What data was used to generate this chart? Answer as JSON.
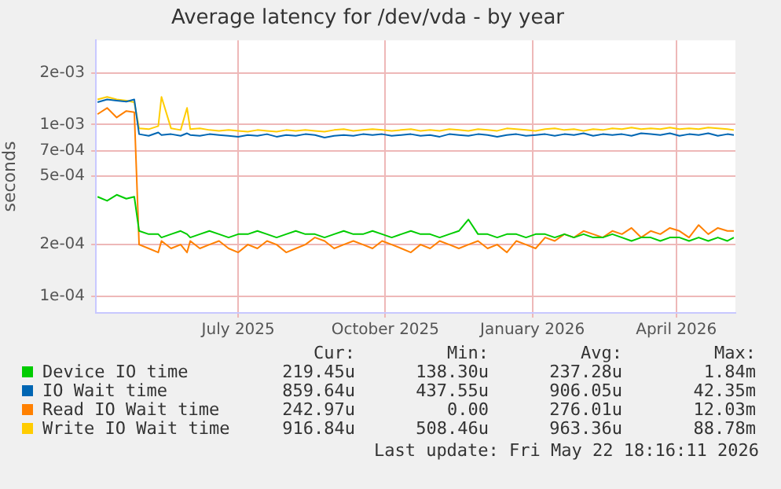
{
  "chart_data": {
    "type": "line",
    "title": "Average latency for /dev/vda - by year",
    "ylabel": "seconds",
    "log": "y",
    "grid": true,
    "legend": "bottom",
    "marker": "none",
    "xlim": [
      "2025-04-17",
      "2026-05-22"
    ],
    "xticks": [
      {
        "value": "2025-07-15",
        "label": "July 2025"
      },
      {
        "value": "2025-10-15",
        "label": "October 2025"
      },
      {
        "value": "2026-01-15",
        "label": "January 2026"
      },
      {
        "value": "2026-04-15",
        "label": "April 2026"
      }
    ],
    "ylim": [
      8e-05,
      0.0031
    ],
    "yticks": [
      {
        "value": 0.0001,
        "label": "1e-04"
      },
      {
        "value": 0.0002,
        "label": "2e-04"
      },
      {
        "value": 0.0005,
        "label": "5e-04"
      },
      {
        "value": 0.0007,
        "label": "7e-04"
      },
      {
        "value": 0.001,
        "label": "1e-03"
      },
      {
        "value": 0.002,
        "label": "2e-03"
      }
    ],
    "x": [
      "2025-04-18",
      "2025-04-24",
      "2025-04-30",
      "2025-05-06",
      "2025-05-11",
      "2025-05-14",
      "2025-05-20",
      "2025-05-26",
      "2025-05-28",
      "2025-06-03",
      "2025-06-09",
      "2025-06-13",
      "2025-06-15",
      "2025-06-21",
      "2025-06-27",
      "2025-07-03",
      "2025-07-09",
      "2025-07-15",
      "2025-07-21",
      "2025-07-27",
      "2025-08-02",
      "2025-08-08",
      "2025-08-14",
      "2025-08-20",
      "2025-08-26",
      "2025-09-01",
      "2025-09-07",
      "2025-09-13",
      "2025-09-19",
      "2025-09-25",
      "2025-10-01",
      "2025-10-07",
      "2025-10-13",
      "2025-10-19",
      "2025-10-25",
      "2025-10-31",
      "2025-11-06",
      "2025-11-12",
      "2025-11-18",
      "2025-11-24",
      "2025-11-30",
      "2025-12-06",
      "2025-12-12",
      "2025-12-18",
      "2025-12-24",
      "2025-12-30",
      "2026-01-05",
      "2026-01-11",
      "2026-01-17",
      "2026-01-23",
      "2026-01-29",
      "2026-02-04",
      "2026-02-10",
      "2026-02-16",
      "2026-02-22",
      "2026-02-28",
      "2026-03-06",
      "2026-03-12",
      "2026-03-18",
      "2026-03-24",
      "2026-03-30",
      "2026-04-05",
      "2026-04-11",
      "2026-04-17",
      "2026-04-23",
      "2026-04-29",
      "2026-05-05",
      "2026-05-11",
      "2026-05-17",
      "2026-05-21"
    ],
    "series": [
      {
        "name": "Device IO time",
        "color": "#00cc00",
        "values": [
          0.00038,
          0.00036,
          0.00039,
          0.00037,
          0.00038,
          0.00024,
          0.00023,
          0.00023,
          0.00022,
          0.00023,
          0.00024,
          0.00023,
          0.00022,
          0.00023,
          0.00024,
          0.00023,
          0.00022,
          0.00023,
          0.00023,
          0.00024,
          0.00023,
          0.00022,
          0.00023,
          0.00024,
          0.00023,
          0.00023,
          0.00022,
          0.00023,
          0.00024,
          0.00023,
          0.00023,
          0.00024,
          0.00023,
          0.00022,
          0.00023,
          0.00024,
          0.00023,
          0.00023,
          0.00022,
          0.00023,
          0.00024,
          0.00028,
          0.00023,
          0.00023,
          0.00022,
          0.00023,
          0.00023,
          0.00022,
          0.00023,
          0.00023,
          0.00022,
          0.00023,
          0.00022,
          0.00023,
          0.00022,
          0.00022,
          0.00023,
          0.00022,
          0.00021,
          0.00022,
          0.00022,
          0.00021,
          0.00022,
          0.00022,
          0.00021,
          0.00022,
          0.00021,
          0.00022,
          0.00021,
          0.00022
        ]
      },
      {
        "name": "IO Wait time",
        "color": "#0066b3",
        "values": [
          0.00135,
          0.0014,
          0.00138,
          0.00136,
          0.0014,
          0.00088,
          0.00086,
          0.0009,
          0.00087,
          0.00088,
          0.00086,
          0.00089,
          0.00087,
          0.00086,
          0.00088,
          0.00087,
          0.00086,
          0.00085,
          0.00087,
          0.00086,
          0.00088,
          0.00085,
          0.00087,
          0.00086,
          0.00088,
          0.00087,
          0.00084,
          0.00086,
          0.00087,
          0.00086,
          0.00088,
          0.00087,
          0.00088,
          0.00086,
          0.00087,
          0.00088,
          0.00086,
          0.00087,
          0.00085,
          0.00088,
          0.00087,
          0.00086,
          0.00088,
          0.00087,
          0.00085,
          0.00087,
          0.00088,
          0.00086,
          0.00087,
          0.00088,
          0.00086,
          0.00088,
          0.00087,
          0.00089,
          0.00086,
          0.00088,
          0.00087,
          0.00088,
          0.00086,
          0.00089,
          0.00088,
          0.00087,
          0.00089,
          0.00086,
          0.00088,
          0.00087,
          0.00089,
          0.00086,
          0.00088,
          0.00087
        ]
      },
      {
        "name": "Read IO Wait time",
        "color": "#ff8000",
        "values": [
          0.00115,
          0.00125,
          0.0011,
          0.0012,
          0.00118,
          0.0002,
          0.00019,
          0.00018,
          0.00021,
          0.00019,
          0.0002,
          0.00018,
          0.00021,
          0.00019,
          0.0002,
          0.00021,
          0.00019,
          0.00018,
          0.0002,
          0.00019,
          0.00021,
          0.0002,
          0.00018,
          0.00019,
          0.0002,
          0.00022,
          0.00021,
          0.00019,
          0.0002,
          0.00021,
          0.0002,
          0.00019,
          0.00021,
          0.0002,
          0.00019,
          0.00018,
          0.0002,
          0.00019,
          0.00021,
          0.0002,
          0.00019,
          0.0002,
          0.00021,
          0.00019,
          0.0002,
          0.00018,
          0.00021,
          0.0002,
          0.00019,
          0.00022,
          0.00021,
          0.00023,
          0.00022,
          0.00024,
          0.00023,
          0.00022,
          0.00024,
          0.00023,
          0.00025,
          0.00022,
          0.00024,
          0.00023,
          0.00025,
          0.00024,
          0.00022,
          0.00026,
          0.00023,
          0.00025,
          0.00024,
          0.00024
        ]
      },
      {
        "name": "Write IO Wait time",
        "color": "#ffcc00",
        "values": [
          0.0014,
          0.00145,
          0.0014,
          0.00138,
          0.00135,
          0.00095,
          0.00094,
          0.00098,
          0.00145,
          0.00095,
          0.00093,
          0.00125,
          0.00094,
          0.00095,
          0.00093,
          0.00092,
          0.00093,
          0.00092,
          0.00091,
          0.00093,
          0.00092,
          0.00091,
          0.00093,
          0.00092,
          0.00093,
          0.00092,
          0.00091,
          0.00093,
          0.00094,
          0.00092,
          0.00093,
          0.00094,
          0.00093,
          0.00092,
          0.00093,
          0.00094,
          0.00092,
          0.00093,
          0.00092,
          0.00094,
          0.00093,
          0.00092,
          0.00094,
          0.00093,
          0.00092,
          0.00095,
          0.00094,
          0.00093,
          0.00092,
          0.00094,
          0.00095,
          0.00093,
          0.00094,
          0.00092,
          0.00094,
          0.00093,
          0.00095,
          0.00094,
          0.00096,
          0.00094,
          0.00095,
          0.00094,
          0.00096,
          0.00094,
          0.00095,
          0.00094,
          0.00096,
          0.00095,
          0.00094,
          0.00093
        ]
      }
    ],
    "annotations": [
      "Cur:",
      "Min:",
      "Avg:",
      "Max:",
      "219.45u",
      "138.30u",
      "237.28u",
      "1.84m",
      "859.64u",
      "437.55u",
      "906.05u",
      "42.35m",
      "242.97u",
      "0.00",
      "276.01u",
      "12.03m",
      "916.84u",
      "508.46u",
      "963.36u",
      "88.78m",
      "Last update: Fri May 22 18:16:11 2026"
    ]
  }
}
